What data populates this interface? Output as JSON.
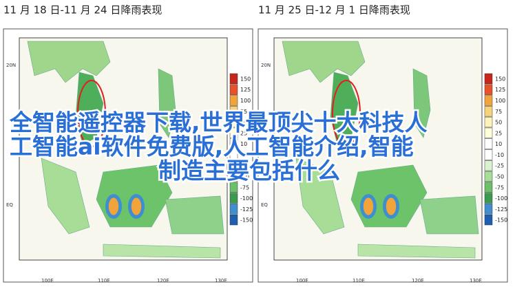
{
  "panels": [
    {
      "title": "11 月 18 日-11 月 24 日降雨表现",
      "y_labels": [
        "20N",
        "EQ"
      ],
      "x_labels": [
        "100E",
        "110E",
        "120E",
        "130E"
      ]
    },
    {
      "title": "11 月 25 日-12 月 1 日降雨表现",
      "y_labels": [
        "20N",
        "EQ"
      ],
      "x_labels": [
        "100E",
        "110E",
        "120E",
        "130E"
      ]
    }
  ],
  "legend": {
    "labels": [
      "150",
      "125",
      "100",
      "75",
      "50",
      "25",
      "10",
      "-10",
      "-25",
      "-50",
      "-75",
      "-100",
      "-125",
      "-150"
    ],
    "colors": [
      "#c8261b",
      "#e8522a",
      "#f2a33a",
      "#f6d27a",
      "#fbf3b8",
      "#ffffd8",
      "#ffffff",
      "#ffffff",
      "#d9f2d0",
      "#a8dd98",
      "#6cc06a",
      "#3a9a4e",
      "#3f8fd0",
      "#1f5fb0"
    ]
  },
  "overlay": [
    "全智能遥控器下载,世界最顶尖十大科技人",
    "工智能ai软件免费版,人工智能介绍,智能",
    "制造主要包括什么"
  ]
}
